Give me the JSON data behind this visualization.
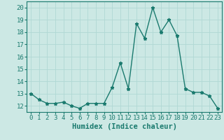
{
  "x": [
    0,
    1,
    2,
    3,
    4,
    5,
    6,
    7,
    8,
    9,
    10,
    11,
    12,
    13,
    14,
    15,
    16,
    17,
    18,
    19,
    20,
    21,
    22,
    23
  ],
  "y": [
    13.0,
    12.5,
    12.2,
    12.2,
    12.3,
    12.0,
    11.8,
    12.2,
    12.2,
    12.2,
    13.5,
    15.5,
    13.4,
    18.7,
    17.5,
    20.0,
    18.0,
    19.0,
    17.7,
    13.4,
    13.1,
    13.1,
    12.8,
    11.8
  ],
  "line_color": "#1a7a6e",
  "marker": "*",
  "marker_color": "#1a7a6e",
  "background_color": "#cce8e4",
  "grid_color": "#b0d8d4",
  "xlabel": "Humidex (Indice chaleur)",
  "ylim": [
    11.5,
    20.5
  ],
  "xlim": [
    -0.5,
    23.5
  ],
  "yticks": [
    12,
    13,
    14,
    15,
    16,
    17,
    18,
    19,
    20
  ],
  "xticks": [
    0,
    1,
    2,
    3,
    4,
    5,
    6,
    7,
    8,
    9,
    10,
    11,
    12,
    13,
    14,
    15,
    16,
    17,
    18,
    19,
    20,
    21,
    22,
    23
  ],
  "tick_fontsize": 6.5,
  "xlabel_fontsize": 7.5,
  "line_width": 1.0,
  "marker_size": 3.5
}
